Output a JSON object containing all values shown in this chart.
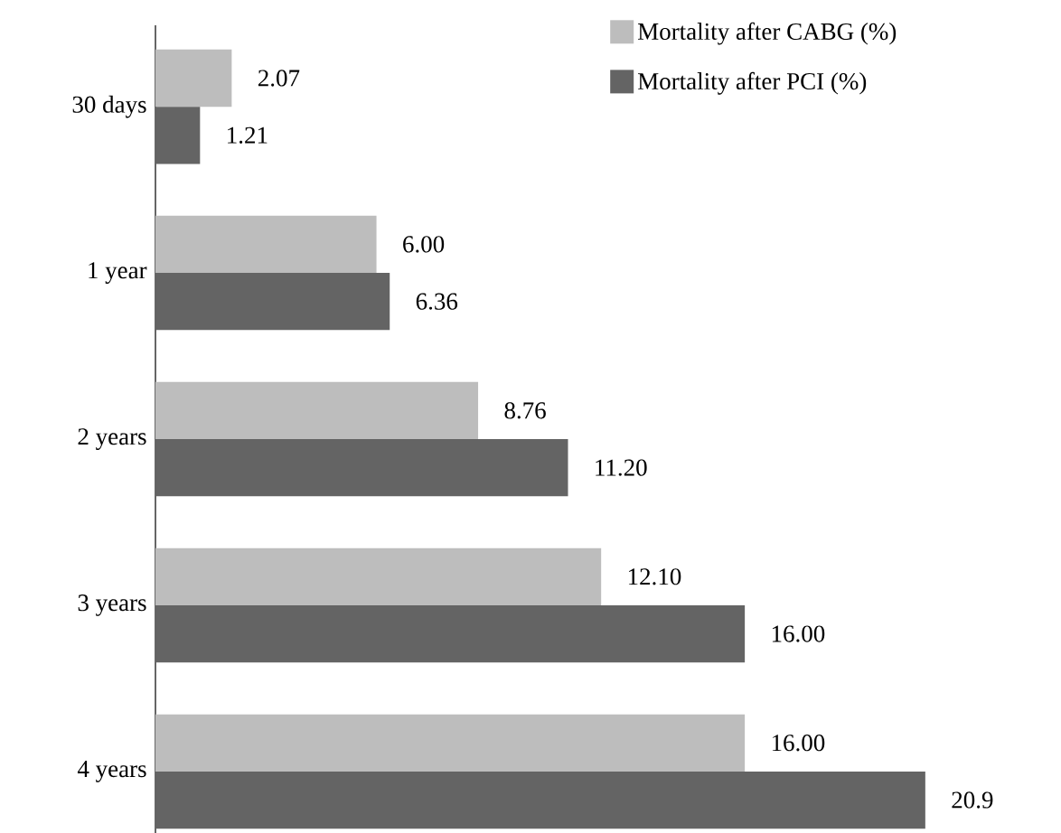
{
  "chart_data": {
    "type": "bar",
    "orientation": "horizontal",
    "legend": "top right",
    "tick_labels": "y",
    "categories": [
      "30 days",
      "1 year",
      "2 years",
      "3 years",
      "4 years"
    ],
    "series": [
      {
        "name": "Mortality after CABG (%)",
        "color": "#bdbdbd",
        "values": [
          2.07,
          6.0,
          8.76,
          12.1,
          16.0
        ],
        "value_labels": [
          "2.07",
          "6.00",
          "8.76",
          "12.10",
          "16.00"
        ]
      },
      {
        "name": "Mortality after PCI (%)",
        "color": "#646464",
        "values": [
          1.21,
          6.36,
          11.2,
          16.0,
          20.9
        ],
        "value_labels": [
          "1.21",
          "6.36",
          "11.20",
          "16.00",
          "20.9"
        ]
      }
    ]
  }
}
